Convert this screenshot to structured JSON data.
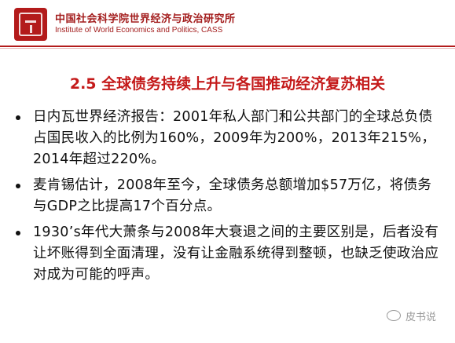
{
  "header": {
    "org_cn": "中国社会科学院世界经济与政治研究所",
    "org_en": "Institute of World Economics and Politics, CASS"
  },
  "slide": {
    "title": "2.5  全球债务持续上升与各国推动经济复苏相关",
    "bullets": [
      "日内瓦世界经济报告：2001年私人部门和公共部门的全球总负债占国民收入的比例为160%，2009年为200%，2013年215%，2014年超过220%。",
      "麦肯锡估计，2008年至今，全球债务总额增加$57万亿，将债务与GDP之比提高17个百分点。",
      "1930’s年代大萧条与2008年大衰退之间的主要区别是，后者没有让坏账得到全面清理，没有让金融系统得到整顿，也缺乏使政治应对成为可能的呼声。"
    ]
  },
  "watermark": {
    "text": "皮书说",
    "icon": "wechat-icon"
  },
  "colors": {
    "accent": "#c41a1a",
    "logo": "#b31b1b",
    "text": "#111111"
  }
}
